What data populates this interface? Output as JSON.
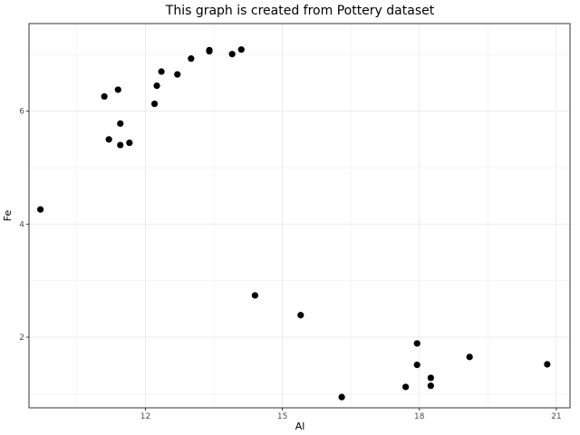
{
  "chart_data": {
    "type": "scatter",
    "title": "This graph is created from Pottery dataset",
    "xlabel": "Al",
    "ylabel": "Fe",
    "xlim": [
      9.45,
      21.3
    ],
    "ylim": [
      0.75,
      7.55
    ],
    "x_ticks": [
      12,
      15,
      18,
      21
    ],
    "y_ticks": [
      2,
      4,
      6
    ],
    "x_minor": [
      10.5,
      13.5,
      16.5,
      19.5
    ],
    "y_minor": [
      1,
      3,
      5,
      7
    ],
    "grid": true,
    "point_color": "#000000",
    "grid_color": "#ebebeb",
    "panel_border_color": "#333333",
    "points": [
      {
        "x": 9.7,
        "y": 4.26
      },
      {
        "x": 11.1,
        "y": 6.26
      },
      {
        "x": 11.2,
        "y": 5.5
      },
      {
        "x": 11.4,
        "y": 6.38
      },
      {
        "x": 11.45,
        "y": 5.78
      },
      {
        "x": 11.45,
        "y": 5.4
      },
      {
        "x": 11.65,
        "y": 5.44
      },
      {
        "x": 12.2,
        "y": 6.13
      },
      {
        "x": 12.25,
        "y": 6.45
      },
      {
        "x": 12.35,
        "y": 6.7
      },
      {
        "x": 12.7,
        "y": 6.65
      },
      {
        "x": 13.0,
        "y": 6.93
      },
      {
        "x": 13.4,
        "y": 7.06
      },
      {
        "x": 13.4,
        "y": 7.08
      },
      {
        "x": 13.9,
        "y": 7.01
      },
      {
        "x": 14.1,
        "y": 7.09
      },
      {
        "x": 14.4,
        "y": 2.74
      },
      {
        "x": 15.4,
        "y": 2.39
      },
      {
        "x": 16.3,
        "y": 0.94
      },
      {
        "x": 17.7,
        "y": 1.12
      },
      {
        "x": 17.95,
        "y": 1.89
      },
      {
        "x": 17.95,
        "y": 1.51
      },
      {
        "x": 18.25,
        "y": 1.28
      },
      {
        "x": 18.25,
        "y": 1.14
      },
      {
        "x": 19.1,
        "y": 1.65
      },
      {
        "x": 20.8,
        "y": 1.52
      }
    ]
  }
}
